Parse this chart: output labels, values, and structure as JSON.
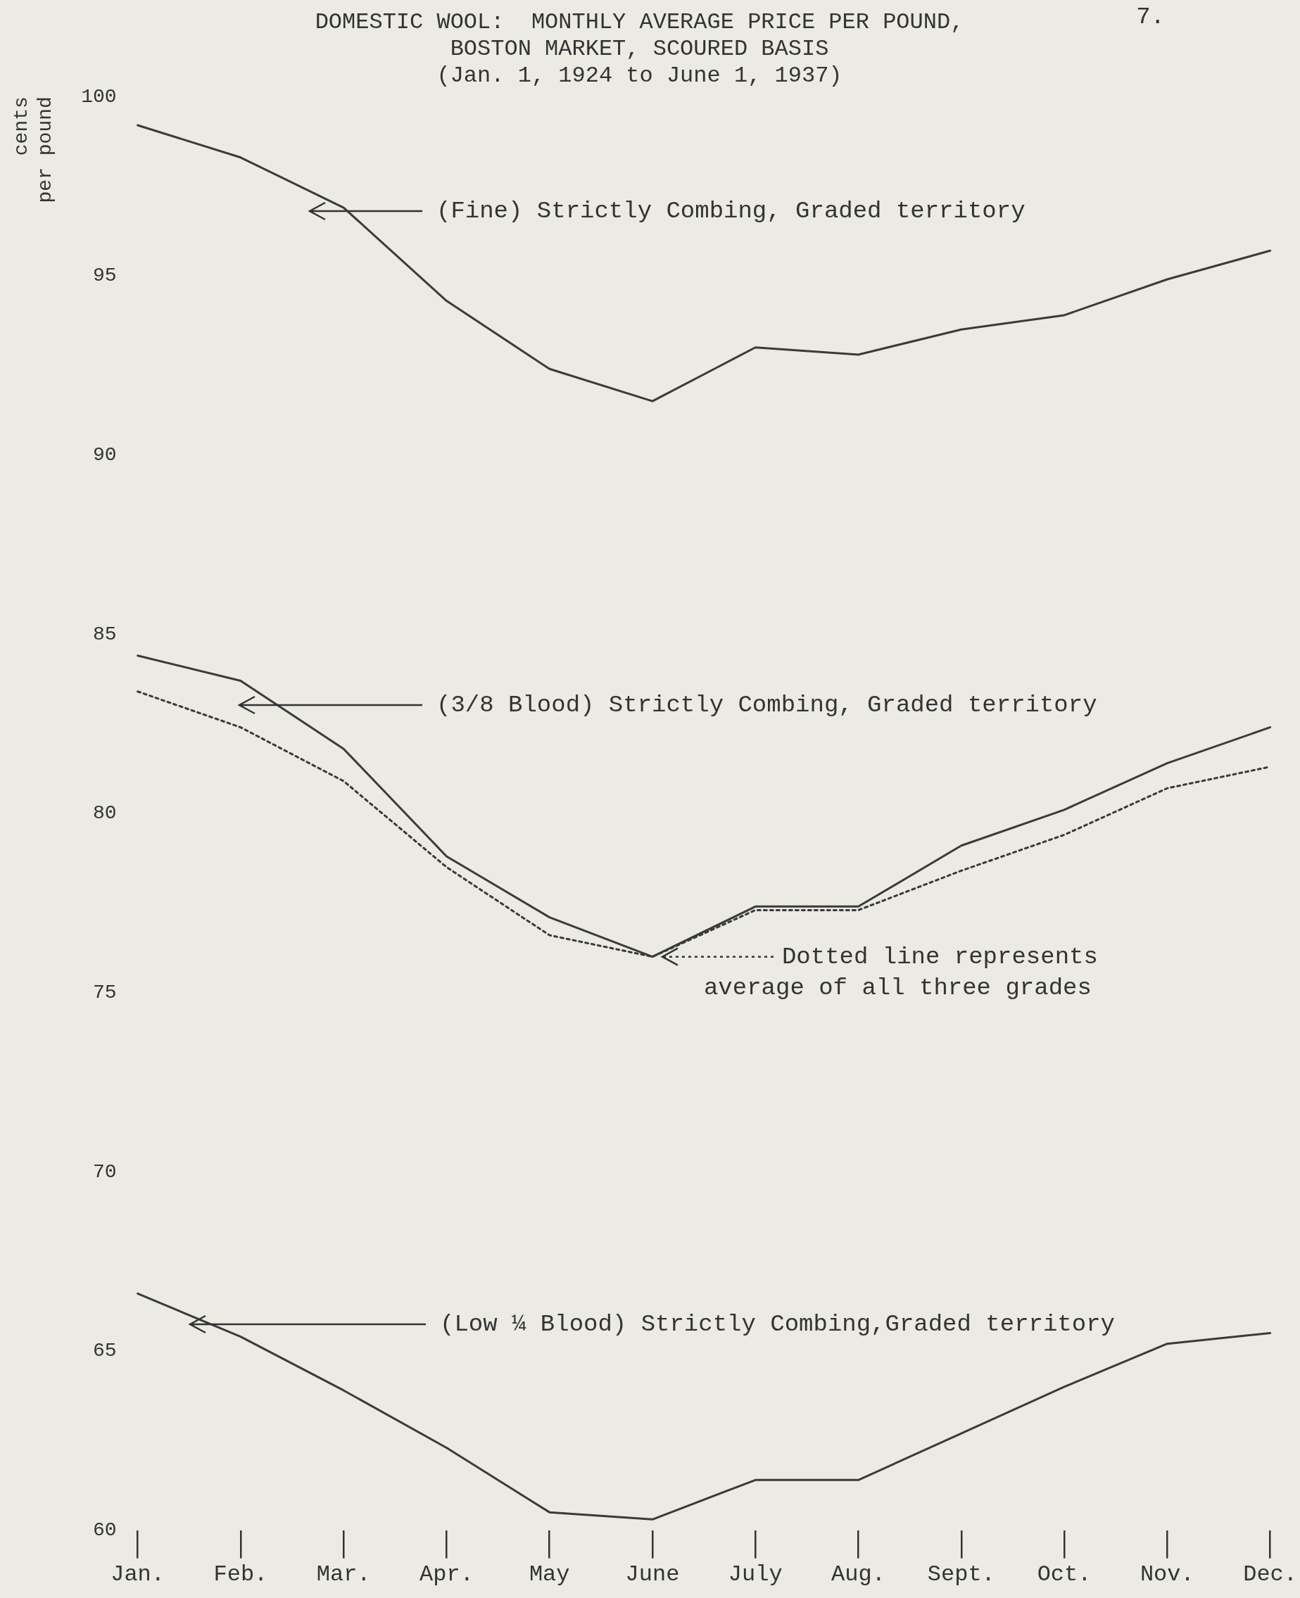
{
  "chart_data": {
    "type": "line",
    "title": "DOMESTIC WOOL:  MONTHLY AVERAGE PRICE PER POUND,\nBOSTON MARKET, SCOURED BASIS",
    "subtitle": "(Jan. 1, 1924 to June 1, 1937)",
    "ylabel": "cents\nper pound",
    "categories": [
      "Jan.",
      "Feb.",
      "Mar.",
      "Apr.",
      "May",
      "June",
      "July",
      "Aug.",
      "Sept.",
      "Oct.",
      "Nov.",
      "Dec."
    ],
    "series": [
      {
        "color": "#3a3a3a",
        "line_style": "solid",
        "values": [
          99.2,
          98.3,
          96.9,
          94.3,
          92.4,
          91.5,
          93.0,
          92.8,
          93.5,
          93.9,
          94.9,
          95.7
        ]
      },
      {
        "color": "#3a3a3a",
        "line_style": "solid",
        "values": [
          84.4,
          83.7,
          81.8,
          78.8,
          77.1,
          76.0,
          77.4,
          77.4,
          79.1,
          80.1,
          81.4,
          82.4
        ]
      },
      {
        "color": "#3a3a3a",
        "line_style": "dotted",
        "values": [
          83.4,
          82.4,
          80.9,
          78.5,
          76.6,
          76.0,
          77.3,
          77.3,
          78.4,
          79.4,
          80.7,
          81.3
        ]
      },
      {
        "color": "#3a3a3a",
        "line_style": "solid",
        "values": [
          66.6,
          65.4,
          63.9,
          62.3,
          60.5,
          60.3,
          61.4,
          61.4,
          62.7,
          64.0,
          65.2,
          65.5
        ]
      }
    ],
    "ylim": [
      60,
      100
    ],
    "yticks": [
      60,
      65,
      70,
      75,
      80,
      85,
      90,
      95,
      100
    ],
    "grid": false,
    "legend": false,
    "marker": "none",
    "annotations": [
      "(Fine) Strictly Combing, Graded territory",
      "(3/8 Blood) Strictly Combing, Graded territory",
      {
        "text": "Dotted line represents\naverage of all three grades",
        "x": "June",
        "y": 76.0
      },
      "(Low ¼ Blood) Strictly Combing,Graded territory",
      "7."
    ]
  }
}
